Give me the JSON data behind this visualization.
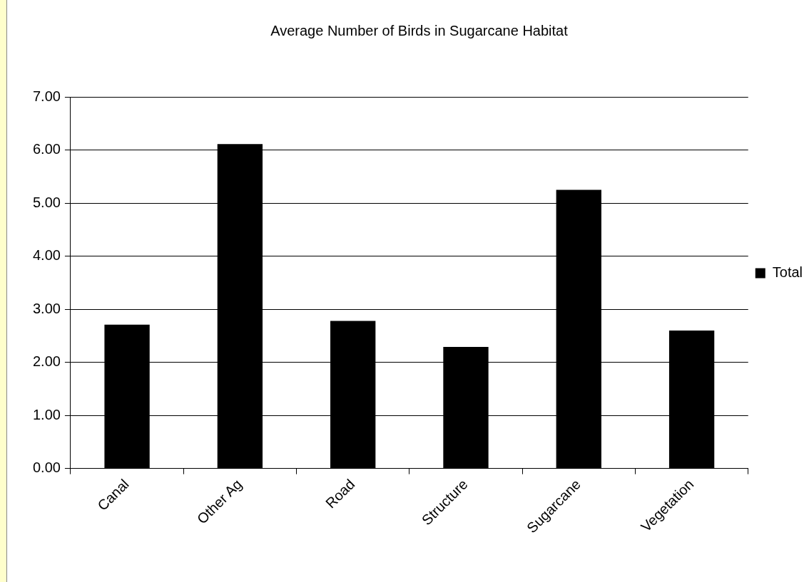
{
  "chart_data": {
    "type": "bar",
    "title": "Average Number of Birds in Sugarcane Habitat",
    "categories": [
      "Canal",
      "Other Ag",
      "Road",
      "Structure",
      "Sugarcane",
      "Vegetation"
    ],
    "series": [
      {
        "name": "Total",
        "color": "#000000",
        "values": [
          2.71,
          6.11,
          2.78,
          2.29,
          5.25,
          2.6
        ]
      }
    ],
    "ylim": [
      0,
      7
    ],
    "yticks": [
      {
        "value": 0,
        "label": "0.00"
      },
      {
        "value": 1,
        "label": "1.00"
      },
      {
        "value": 2,
        "label": "2.00"
      },
      {
        "value": 3,
        "label": "3.00"
      },
      {
        "value": 4,
        "label": "4.00"
      },
      {
        "value": 5,
        "label": "5.00"
      },
      {
        "value": 6,
        "label": "6.00"
      },
      {
        "value": 7,
        "label": "7.00"
      }
    ],
    "grid": "y",
    "legend": "right"
  }
}
